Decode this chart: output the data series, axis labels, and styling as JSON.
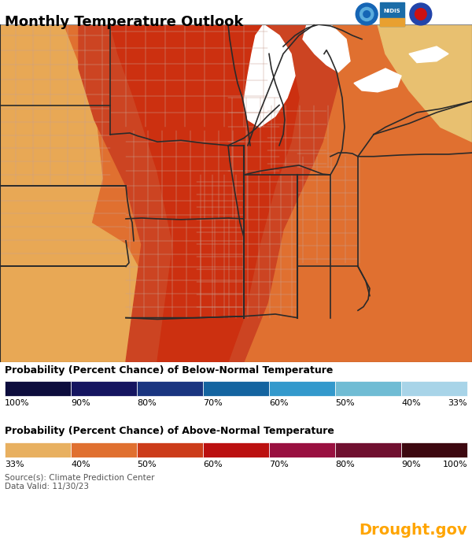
{
  "title": "Monthly Temperature Outlook",
  "source_text": "Source(s): Climate Prediction Center\nData Valid: 11/30/23",
  "drought_text": "Drought.gov",
  "drought_color": "#FFA500",
  "below_label": "Probability (Percent Chance) of Below-Normal Temperature",
  "above_label": "Probability (Percent Chance) of Above-Normal Temperature",
  "below_colors": [
    "#0d0d3d",
    "#151560",
    "#1a3580",
    "#1464a0",
    "#3399cc",
    "#70bcd4",
    "#a8d4e8"
  ],
  "below_labels": [
    "100%",
    "90%",
    "80%",
    "70%",
    "60%",
    "50%",
    "40%",
    "33%"
  ],
  "above_colors": [
    "#e8b060",
    "#e07030",
    "#cc3c1a",
    "#bb1010",
    "#991040",
    "#701030",
    "#3d0810"
  ],
  "above_labels": [
    "33%",
    "40%",
    "50%",
    "60%",
    "70%",
    "80%",
    "90%",
    "100%"
  ],
  "background_color": "#ffffff",
  "map_border_color": "#888888",
  "state_line_color": "#2a2a2a",
  "county_line_color": "#c8a090",
  "lake_color": "#ffffff",
  "title_fontsize": 13,
  "legend_title_fontsize": 9,
  "legend_label_fontsize": 8
}
